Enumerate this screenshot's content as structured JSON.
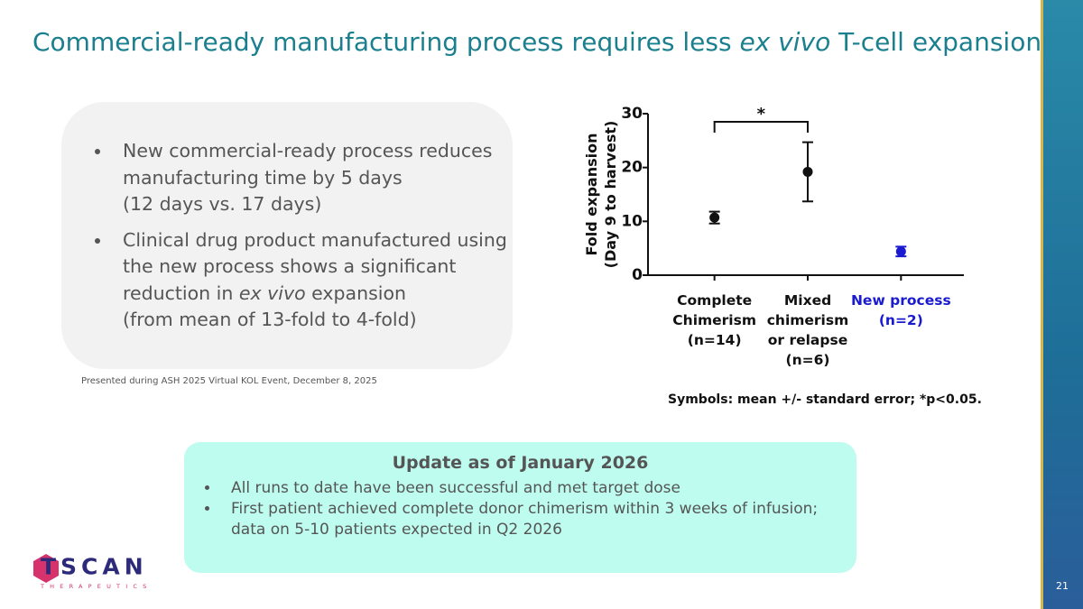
{
  "slide": {
    "title": [
      "Commercial-ready manufacturing process requires less ",
      "ex vivo",
      " T-cell expansion"
    ],
    "bullets": [
      {
        "parts": [
          "New commercial-ready process reduces manufacturing time by 5 days"
        ],
        "detail": "(12 days vs. 17 days)"
      },
      {
        "parts": [
          "Clinical drug product manufactured using the new process shows a significant reduction in ",
          "ex vivo",
          " expansion"
        ],
        "detail": "(from mean of 13-fold to 4-fold)"
      }
    ],
    "source": "Presented during ASH 2025 Virtual KOL Event, December 8, 2025",
    "update": {
      "heading": "Update as of January 2026",
      "bullets": [
        "All runs to date have been successful and met target dose",
        "First patient achieved complete donor chimerism within 3 weeks of infusion; data on 5-10 patients expected in Q2 2026"
      ]
    },
    "logo": {
      "name": "TSCAN",
      "subtitle": "THERAPEUTICS"
    },
    "page_number": "21"
  },
  "chart_data": {
    "type": "errorbar",
    "ylabel": [
      "Fold expansion",
      "(Day 9 to harvest)"
    ],
    "categories": [
      "Complete Chimerism (n=14)",
      "Mixed chimerism or relapse (n=6)",
      "New process (n=2)"
    ],
    "values": [
      10.7,
      19.2,
      4.4
    ],
    "errors": [
      1.1,
      5.5,
      0.9
    ],
    "colors": [
      "#111111",
      "#111111",
      "#1a1ad0"
    ],
    "ylim": [
      0,
      30
    ],
    "yticks": [
      0,
      10,
      20,
      30
    ],
    "significance": {
      "from": 0,
      "to": 1,
      "label": "*"
    },
    "note": "Symbols: mean +/- standard error; *p<0.05."
  }
}
